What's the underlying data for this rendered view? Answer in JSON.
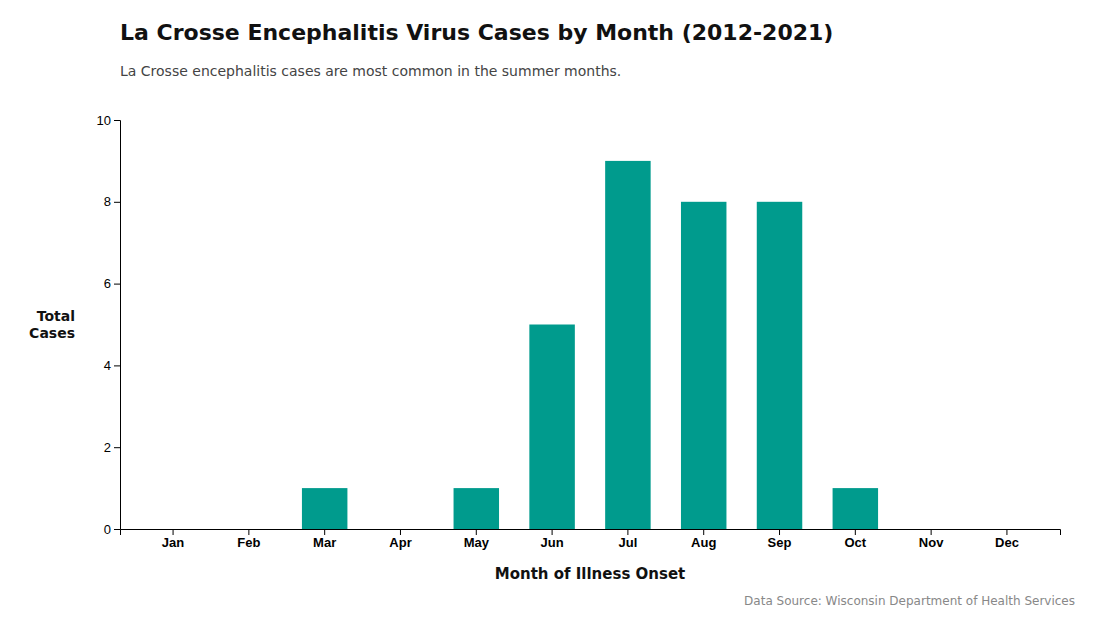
{
  "chart_data": {
    "type": "bar",
    "title": "La Crosse Encephalitis Virus Cases by Month (2012-2021)",
    "subtitle": "La Crosse encephalitis cases are most common in the summer months.",
    "x_label": "Month of Illness Onset",
    "y_label": "Total\nCases",
    "annotations": [
      "Data Source: Wisconsin Department of Health Services"
    ],
    "categories": [
      "Jan",
      "Feb",
      "Mar",
      "Apr",
      "May",
      "Jun",
      "Jul",
      "Aug",
      "Sep",
      "Oct",
      "Nov",
      "Dec"
    ],
    "values": [
      0,
      0,
      1,
      0,
      1,
      5,
      9,
      8,
      8,
      1,
      0,
      0
    ],
    "color": "#009B8D",
    "ylim": [
      0,
      10
    ],
    "yticks": [
      0,
      2,
      4,
      6,
      8,
      10
    ],
    "grid": false
  }
}
